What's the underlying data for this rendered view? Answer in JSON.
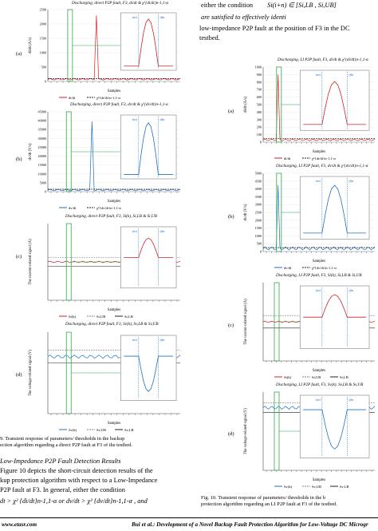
{
  "fig9": {
    "panels": [
      {
        "id": "a",
        "label": "(a)",
        "title": "Discharging, direct P2P fault, F3, di/dt & χ²{di/dt}n-1,1-α",
        "ylabel": "di/dt (A/s)",
        "yticks": [
          "2500",
          "2000",
          "1500",
          "1000",
          "500",
          "0"
        ],
        "xlabel": "Samples",
        "legend": [
          "di/dt",
          "χ²{di/dt}n-1,1-α"
        ],
        "tini": "tini",
        "tfin": "tfin"
      },
      {
        "id": "b",
        "label": "(b)",
        "title": "Discharging, direct P2P fault, F3, dv/dt & χ²{dv/dt}n-1,1-α",
        "ylabel": "dv/dt (V/s)",
        "yticks": [
          "45000",
          "40000",
          "35000",
          "30000",
          "25000",
          "20000",
          "15000",
          "10000",
          "5000",
          "0"
        ],
        "xlabel": "Samples",
        "legend": [
          "dv/dt",
          "χ²{dv/dt}n-1,1-α"
        ],
        "tini": "tini",
        "tfin": "tfin"
      },
      {
        "id": "c",
        "label": "(c)",
        "title": "Discharging, direct P2P fault, F3, Si(k), Si,LB & Si,UB",
        "ylabel": "The current-related signal (A)",
        "xlabel": "Samples",
        "legend": [
          "Si(k)",
          "Si,UB",
          "Si,LB"
        ],
        "tini": "tini",
        "tfin": "tfin"
      },
      {
        "id": "d",
        "label": "(d)",
        "title": "Discharging, direct P2P fault, F3, Sv(k), Sv,LB & Sv,UB",
        "ylabel": "The voltage-related signal (V)",
        "xlabel": "Samples",
        "legend": [
          "Sv(k)",
          "Sv,UB",
          "Sv,LB"
        ],
        "tini": "tini",
        "tfin": "tfin"
      }
    ],
    "caption_lines": [
      "9.   Transient response of parameters/ thresholds in the backup",
      "ection algorithm regarding a direct P2P fault at F3 of the testbed."
    ]
  },
  "fig10": {
    "panels": [
      {
        "id": "a",
        "label": "(a)",
        "title": "Discharging, LI P2P fault, F3, di/dt & χ²{di/dt}n-1,1-α",
        "ylabel": "di/dt (A/s)",
        "yticks": [
          "1000",
          "900",
          "800",
          "700",
          "600",
          "500",
          "400",
          "300",
          "200",
          "100",
          "0"
        ],
        "xlabel": "Samples",
        "legend": [
          "di/dt",
          "χ²{di/dt}n-1,1-α"
        ],
        "tini": "tini",
        "tfin": "tfin"
      },
      {
        "id": "b",
        "label": "(b)",
        "title": "Discharging, LI P2P fault, F3, dv/dt & χ²{dv/dt}n-1,1-α",
        "ylabel": "dv/dt (V/s)",
        "yticks": [
          "5000",
          "4500",
          "4000",
          "3500",
          "3000",
          "2500",
          "2000",
          "1500",
          "1000",
          "500",
          "0"
        ],
        "xlabel": "Samples",
        "legend": [
          "dv/dt",
          "χ²{dv/dt}n-1,1-α"
        ],
        "tini": "tini",
        "tfin": "tfin"
      },
      {
        "id": "c",
        "label": "(c)",
        "title": "Discharging, LI P2P fault, F3, Si(k), Si,LB & Si,UB",
        "ylabel": "The current-related signal (A)",
        "xlabel": "Samples",
        "legend": [
          "Si(k)",
          "Si,UB",
          "Si,LB"
        ],
        "tini": "tini",
        "tfin": "tfin"
      },
      {
        "id": "d",
        "label": "(d)",
        "title": "Discharging, LI P2P fault, F3, Sv(k), Sv,LB & Sv,UB",
        "ylabel": "The voltage-related signal (V)",
        "xlabel": "Samples",
        "legend": [
          "Sv(k)",
          "Sv,UB",
          "Sv,LB"
        ],
        "tini": "tini",
        "tfin": "tfin"
      }
    ],
    "caption_lines": [
      "Fig. 10.      Transient response of parameters/ thresholds in the b",
      "protection algorithm regarding an LI P2P fault at F3 of the testbed."
    ]
  },
  "right_intro": {
    "line1": "either       the       condition",
    "line1_math": "Si(i+n) ∈ [Si,LB , Si,UB]",
    "line2": "are satisfied to effectively identi",
    "line3": "low-impedance P2P fault at the position of F3 in the DC",
    "line4": "testbed."
  },
  "left_text": {
    "heading": "Low-Impedance P2P Fault Detection Results",
    "lines": [
      "Figure 10 depicts the short-circuit detection results of the",
      "kup protection algorithm with respect to a Low-Impedance",
      "   P2P  fault  at  F3.   In  general,  either  the  condition",
      "dt > χ² {di/dt}n-1,1-α   or   dv/dt > χ² {dv/dt}n-1,1-α ,   and"
    ]
  },
  "footer": {
    "left": "www.etasr.com",
    "right": "Bui et al.: Development of a Novel Backup Fault Protection Algorithm for Low-Voltage DC Microgr"
  },
  "colors": {
    "red": "#d42020",
    "blue": "#1f6fc1",
    "green": "#2ea84a",
    "gray": "#7f7f7f",
    "black": "#222222"
  }
}
